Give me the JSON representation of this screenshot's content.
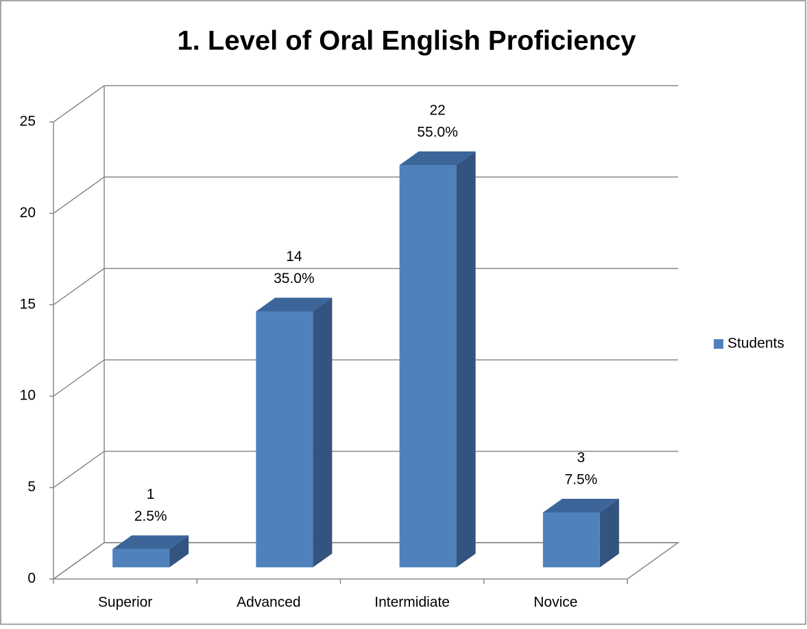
{
  "chart_data": {
    "type": "bar3d",
    "title": "1. Level of  Oral English Proficiency",
    "categories": [
      "Superior",
      "Advanced",
      "Intermidiate",
      "Novice"
    ],
    "series": [
      {
        "name": "Students",
        "color": "#4f81bd",
        "values": [
          1,
          14,
          22,
          3
        ]
      }
    ],
    "percentages": [
      2.5,
      35,
      55,
      7.5
    ],
    "percentage_labels": [
      "2.5%",
      "35.0%",
      "55.0%",
      "7.5%"
    ],
    "ylim": [
      0,
      25
    ],
    "yticks": [
      0,
      5,
      10,
      15,
      20,
      25
    ],
    "grid": true,
    "legend": "right"
  }
}
